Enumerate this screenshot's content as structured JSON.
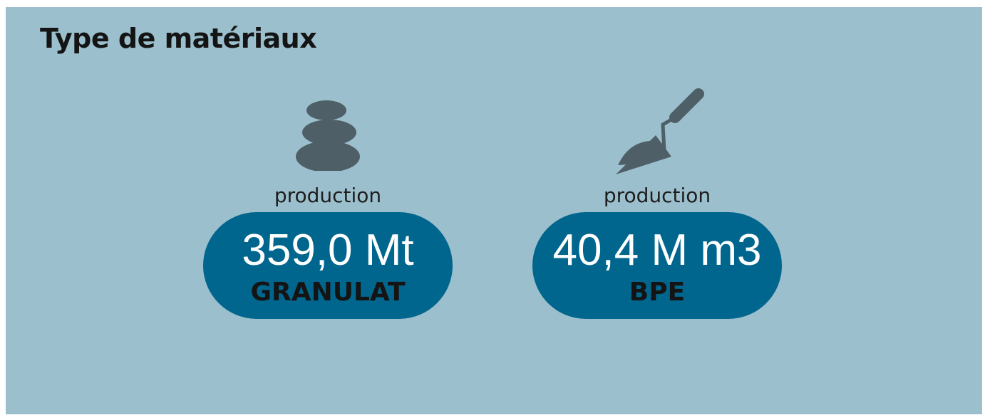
{
  "title": "Type de matériaux",
  "items": [
    {
      "caption": "production",
      "value": "359,0 Mt",
      "label": "GRANULAT"
    },
    {
      "caption": "production",
      "value": "40,4 M m3",
      "label": "BPE"
    }
  ]
}
